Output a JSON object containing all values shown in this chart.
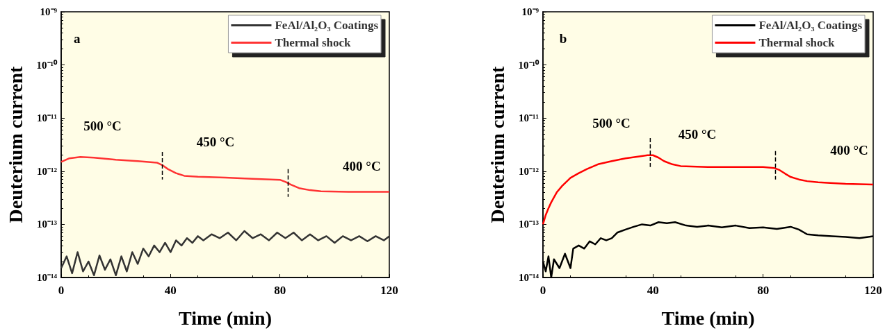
{
  "chart_data": [
    {
      "type": "line",
      "xlabel": "Time (min)",
      "ylabel": "Deuterium current",
      "log": "y",
      "grid": false,
      "legend": "top right",
      "marker": "none",
      "line_style": "solid",
      "xlim": [
        0,
        120
      ],
      "xticks": [
        0,
        40,
        80,
        120
      ],
      "ylim": [
        1e-14,
        1e-09
      ],
      "yticks": [
        {
          "value": 1e-14,
          "label": "10⁻¹⁴"
        },
        {
          "value": 1e-13,
          "label": "10⁻¹³"
        },
        {
          "value": 1e-12,
          "label": "10⁻¹²"
        },
        {
          "value": 1e-11,
          "label": "10⁻¹¹"
        },
        {
          "value": 1e-10,
          "label": "10⁻¹⁰"
        },
        {
          "value": 1e-09,
          "label": "10⁻⁹"
        }
      ],
      "annotations": [
        "a",
        "500 °C",
        "450 °C",
        "400 °C"
      ],
      "series": [
        {
          "name": "FeAl/Al₂O₃ Coatings",
          "color": "#333333",
          "x": [
            0,
            2,
            4,
            6,
            8,
            10,
            12,
            14,
            16,
            18,
            20,
            22,
            24,
            26,
            28,
            30,
            32,
            34,
            36,
            38,
            40,
            42,
            44,
            46,
            48,
            50,
            52,
            55,
            58,
            61,
            64,
            67,
            70,
            73,
            76,
            79,
            82,
            85,
            88,
            91,
            94,
            97,
            100,
            103,
            106,
            109,
            112,
            115,
            118,
            120
          ],
          "values": [
            1.5e-14,
            2.5e-14,
            1.2e-14,
            3e-14,
            1.3e-14,
            2e-14,
            1.1e-14,
            2.6e-14,
            1.4e-14,
            2.2e-14,
            1.1e-14,
            2.5e-14,
            1.3e-14,
            3e-14,
            1.8e-14,
            3.5e-14,
            2.5e-14,
            4e-14,
            3e-14,
            4.5e-14,
            3e-14,
            5e-14,
            4e-14,
            5.5e-14,
            4.5e-14,
            6e-14,
            5e-14,
            6.5e-14,
            5.5e-14,
            7e-14,
            5e-14,
            7.5e-14,
            5.5e-14,
            6.5e-14,
            5e-14,
            7e-14,
            5.5e-14,
            7e-14,
            5e-14,
            6.5e-14,
            5e-14,
            6e-14,
            4.5e-14,
            6e-14,
            5e-14,
            6e-14,
            4.8e-14,
            6e-14,
            5e-14,
            6e-14
          ]
        },
        {
          "name": "Thermal shock",
          "color": "#ff3333",
          "x": [
            0,
            3,
            7,
            12,
            20,
            28,
            35,
            37,
            39,
            42,
            45,
            50,
            60,
            70,
            80,
            82,
            84,
            87,
            91,
            95,
            105,
            120
          ],
          "values": [
            1.5e-12,
            1.75e-12,
            1.85e-12,
            1.8e-12,
            1.65e-12,
            1.55e-12,
            1.45e-12,
            1.3e-12,
            1.1e-12,
            9.2e-13,
            8.2e-13,
            7.9e-13,
            7.6e-13,
            7.2e-13,
            6.9e-13,
            6.3e-13,
            5.6e-13,
            4.8e-13,
            4.4e-13,
            4.2e-13,
            4.1e-13,
            4.1e-13
          ]
        },
        {
          "color": "#000000",
          "line_style": "dashed",
          "x": [
            37,
            37
          ],
          "values": [
            2.3e-12,
            7e-13
          ]
        },
        {
          "color": "#000000",
          "line_style": "dashed",
          "x": [
            83,
            83
          ],
          "values": [
            1.1e-12,
            3.3e-13
          ]
        }
      ]
    },
    {
      "type": "line",
      "xlabel": "Time (min)",
      "ylabel": "Deuterium current",
      "log": "y",
      "grid": false,
      "legend": "top right",
      "marker": "none",
      "line_style": "solid",
      "xlim": [
        0,
        120
      ],
      "xticks": [
        0,
        40,
        80,
        120
      ],
      "ylim": [
        1e-14,
        1e-09
      ],
      "yticks": [
        {
          "value": 1e-14,
          "label": "10⁻¹⁴"
        },
        {
          "value": 1e-13,
          "label": "10⁻¹³"
        },
        {
          "value": 1e-12,
          "label": "10⁻¹²"
        },
        {
          "value": 1e-11,
          "label": "10⁻¹¹"
        },
        {
          "value": 1e-10,
          "label": "10⁻¹⁰"
        },
        {
          "value": 1e-09,
          "label": "10⁻⁹"
        }
      ],
      "annotations": [
        "b",
        "500 °C",
        "450 °C",
        "400 °C"
      ],
      "series": [
        {
          "name": "FeAl/Al₂O₃ Coatings",
          "color": "#000000",
          "x": [
            0,
            1,
            2,
            3,
            4,
            6,
            8,
            10,
            11,
            13,
            15,
            17,
            19,
            21,
            23,
            25,
            27,
            30,
            33,
            36,
            39,
            42,
            45,
            48,
            52,
            56,
            60,
            65,
            70,
            75,
            80,
            85,
            90,
            93,
            96,
            100,
            105,
            110,
            115,
            120
          ],
          "values": [
            2e-14,
            1.3e-14,
            2.5e-14,
            1e-14,
            2.2e-14,
            1.5e-14,
            2.8e-14,
            1.5e-14,
            3.5e-14,
            4e-14,
            3.5e-14,
            4.8e-14,
            4.2e-14,
            5.5e-14,
            5e-14,
            5.5e-14,
            7e-14,
            8e-14,
            9e-14,
            1e-13,
            9.5e-14,
            1.1e-13,
            1.05e-13,
            1.1e-13,
            9.5e-14,
            9e-14,
            9.5e-14,
            8.8e-14,
            9.5e-14,
            8.5e-14,
            8.8e-14,
            8.2e-14,
            9e-14,
            8e-14,
            6.5e-14,
            6.2e-14,
            6e-14,
            5.8e-14,
            5.5e-14,
            6e-14
          ]
        },
        {
          "name": "Thermal shock",
          "color": "#ff0000",
          "x": [
            0,
            1,
            2,
            3,
            5,
            7,
            10,
            13,
            16,
            20,
            25,
            30,
            35,
            38,
            40,
            42,
            44,
            47,
            50,
            60,
            70,
            80,
            84,
            86,
            88,
            90,
            93,
            96,
            100,
            110,
            120
          ],
          "values": [
            1e-13,
            1.5e-13,
            2e-13,
            2.6e-13,
            4e-13,
            5.3e-13,
            7.5e-13,
            9.2e-13,
            1.1e-12,
            1.35e-12,
            1.55e-12,
            1.75e-12,
            1.9e-12,
            2e-12,
            2e-12,
            1.8e-12,
            1.55e-12,
            1.35e-12,
            1.25e-12,
            1.2e-12,
            1.2e-12,
            1.2e-12,
            1.15e-12,
            1.05e-12,
            9e-13,
            7.8e-13,
            7e-13,
            6.5e-13,
            6.2e-13,
            5.8e-13,
            5.6e-13
          ]
        },
        {
          "color": "#000000",
          "line_style": "dashed",
          "x": [
            39,
            39
          ],
          "values": [
            4.2e-12,
            1.2e-12
          ]
        },
        {
          "color": "#000000",
          "line_style": "dashed",
          "x": [
            84.5,
            84.5
          ],
          "values": [
            2.4e-12,
            7e-13
          ]
        }
      ]
    }
  ]
}
